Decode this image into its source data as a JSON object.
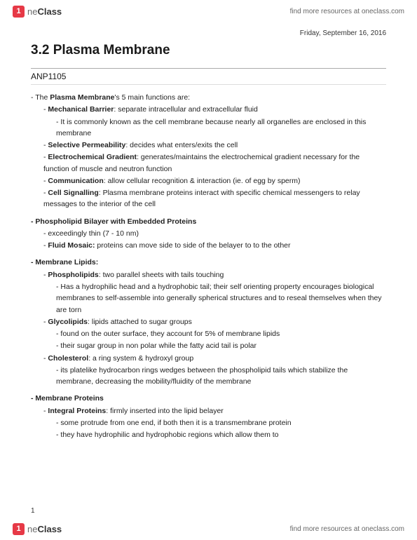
{
  "brand": {
    "icon": "1",
    "name_light": "ne",
    "name_bold": "Class"
  },
  "resource_link": "find more resources at oneclass.com",
  "date": "Friday, September 16, 2016",
  "title": "3.2 Plasma Membrane",
  "course": "ANP1105",
  "page_number": "1",
  "lines": [
    {
      "lvl": 0,
      "pre": "- The ",
      "b": "Plasma Membrane",
      "post": "'s 5 main functions are:"
    },
    {
      "lvl": 1,
      "pre": "- ",
      "b": "Mechanical Barrier",
      "post": ": separate intracellular and extracellular fluid"
    },
    {
      "lvl": 2,
      "pre": "- ",
      "post": "It is commonly known as the cell membrane because nearly all organelles are enclosed in this membrane"
    },
    {
      "lvl": 1,
      "pre": "- ",
      "b": "Selective Permeability",
      "post": ": decides what enters/exits the cell"
    },
    {
      "lvl": 1,
      "pre": "- ",
      "b": "Electrochemical Gradient",
      "post": ": generates/maintains the electrochemical gradient necessary for the function of muscle and neutron function"
    },
    {
      "lvl": 1,
      "pre": "- ",
      "b": "Communication",
      "post": ": allow cellular recognition & interaction (ie. of egg by sperm)"
    },
    {
      "lvl": 1,
      "pre": "- ",
      "b": "Cell Signalling",
      "post": ": Plasma membrane proteins interact with specific chemical messengers to relay messages to the interior of the cell"
    },
    {
      "lvl": 0,
      "pre": "- ",
      "b": "Phospholipid Bilayer with Embedded Proteins",
      "section": true
    },
    {
      "lvl": 1,
      "pre": "- ",
      "post": "exceedingly thin (7 - 10 nm)"
    },
    {
      "lvl": 1,
      "pre": "- ",
      "b": "Fluid Mosaic:",
      "post": " proteins can move side to side of the belayer to to the other"
    },
    {
      "lvl": 0,
      "pre": "- ",
      "b": "Membrane Lipids:",
      "section": true
    },
    {
      "lvl": 1,
      "pre": "- ",
      "b": "Phospholipids",
      "post": ": two parallel sheets with tails touching"
    },
    {
      "lvl": 2,
      "pre": "- ",
      "post": "Has a hydrophilic head and a hydrophobic tail; their self orienting property encourages biological membranes to self-assemble into generally spherical structures and to reseal themselves when they are torn"
    },
    {
      "lvl": 1,
      "pre": "- ",
      "b": "Glycolipids",
      "post": ": lipids attached to sugar groups"
    },
    {
      "lvl": 2,
      "pre": "- ",
      "post": "found on the outer surface, they account for 5% of membrane lipids"
    },
    {
      "lvl": 2,
      "pre": "- ",
      "post": "their sugar group in non polar while the fatty acid tail is polar"
    },
    {
      "lvl": 1,
      "pre": "- ",
      "b": "Cholesterol",
      "post": ": a ring system & hydroxyl group"
    },
    {
      "lvl": 2,
      "pre": "- ",
      "post": "its platelike hydrocarbon rings wedges between the phospholipid tails which stabilize the membrane, decreasing the mobility/fluidity of the membrane"
    },
    {
      "lvl": 0,
      "pre": "- ",
      "b": "Membrane Proteins",
      "section": true
    },
    {
      "lvl": 1,
      "pre": "- ",
      "b": "Integral Proteins",
      "post": ": firmly inserted into the lipid belayer"
    },
    {
      "lvl": 2,
      "pre": "- ",
      "post": "some protrude from one end, if both then it is a transmembrane protein"
    },
    {
      "lvl": 2,
      "pre": "- ",
      "post": "they have hydrophilic and hydrophobic regions which allow them to"
    }
  ]
}
